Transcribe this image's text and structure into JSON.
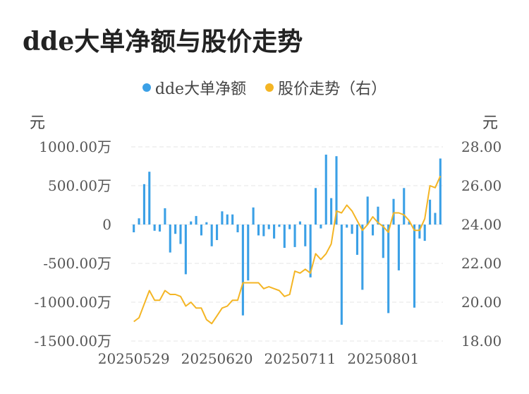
{
  "title": "dde大单净额与股价走势",
  "legend": {
    "series1": "dde大单净额",
    "series2": "股价走势（右）"
  },
  "units": {
    "left": "元",
    "right": "元"
  },
  "colors": {
    "bar": "#3BA0E6",
    "line": "#F4B524",
    "grid": "#E5E5E5"
  },
  "chart_data": {
    "type": "bar",
    "title": "dde大单净额与股价走势",
    "left_axis": {
      "ticks": [
        "1000.00万",
        "500.00万",
        "0",
        "-500.00万",
        "-1000.00万",
        "-1500.00万"
      ],
      "tick_values": [
        1000,
        500,
        0,
        -500,
        -1000,
        -1500
      ],
      "ylim": [
        -1500,
        1000
      ]
    },
    "right_axis": {
      "ticks": [
        "28.00",
        "26.00",
        "24.00",
        "22.00",
        "20.00",
        "18.00"
      ],
      "tick_values": [
        28,
        26,
        24,
        22,
        20,
        18
      ],
      "ylim": [
        18,
        28
      ]
    },
    "x_tick_labels": [
      "20250529",
      "20250620",
      "20250711",
      "20250801"
    ],
    "x_tick_indices": [
      0,
      16,
      32,
      48
    ],
    "grid": true,
    "legend_position": "top",
    "series": [
      {
        "name": "dde大单净额",
        "type": "bar",
        "axis": "left",
        "values": [
          -100,
          80,
          520,
          680,
          -80,
          -90,
          210,
          -360,
          -120,
          -250,
          -640,
          40,
          110,
          -140,
          30,
          -280,
          -200,
          170,
          130,
          130,
          -100,
          -1170,
          -720,
          220,
          -140,
          -150,
          -60,
          -180,
          -30,
          -300,
          -60,
          -290,
          40,
          -280,
          -680,
          470,
          -50,
          900,
          340,
          880,
          -1290,
          -40,
          -120,
          -390,
          -840,
          360,
          -140,
          230,
          -430,
          -1140,
          330,
          -590,
          470,
          40,
          -1070,
          -180,
          -210,
          320,
          150,
          850
        ]
      },
      {
        "name": "股价走势（右）",
        "type": "line",
        "axis": "right",
        "values": [
          19.0,
          19.2,
          19.9,
          20.6,
          20.1,
          20.1,
          20.6,
          20.4,
          20.4,
          20.3,
          19.8,
          20.0,
          19.7,
          19.7,
          19.1,
          18.9,
          19.3,
          19.7,
          19.8,
          20.1,
          20.1,
          21.0,
          21.0,
          21.0,
          21.0,
          20.7,
          20.8,
          20.7,
          20.6,
          20.3,
          20.4,
          21.6,
          21.5,
          21.7,
          21.5,
          22.5,
          22.2,
          22.5,
          23.0,
          24.7,
          24.6,
          25.0,
          24.7,
          24.2,
          23.7,
          24.0,
          24.4,
          24.1,
          23.9,
          23.6,
          24.6,
          24.6,
          24.5,
          24.2,
          23.7,
          23.7,
          24.3,
          26.0,
          25.9,
          26.5
        ]
      }
    ]
  }
}
